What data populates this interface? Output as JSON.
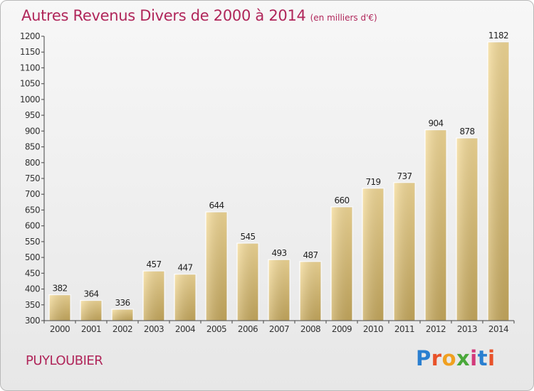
{
  "header": {
    "title": "Autres Revenus Divers de 2000 à 2014",
    "subtitle": "(en milliers d'€)"
  },
  "commune": "PUYLOUBIER",
  "logo": {
    "text": "Proxiti",
    "letter_colors": [
      "#2a7fd0",
      "#e8522a",
      "#f0a020",
      "#4aa83a",
      "#d23a7a",
      "#2a7fd0",
      "#e8522a"
    ]
  },
  "chart_data": {
    "type": "bar",
    "categories": [
      "2000",
      "2001",
      "2002",
      "2003",
      "2004",
      "2005",
      "2006",
      "2007",
      "2008",
      "2009",
      "2010",
      "2011",
      "2012",
      "2013",
      "2014"
    ],
    "values": [
      382,
      364,
      336,
      457,
      447,
      644,
      545,
      493,
      487,
      660,
      719,
      737,
      904,
      878,
      1182
    ],
    "ylim": [
      300,
      1200
    ],
    "yticks": [
      300,
      350,
      400,
      450,
      500,
      550,
      600,
      650,
      700,
      750,
      800,
      850,
      900,
      950,
      1000,
      1050,
      1100,
      1150,
      1200
    ],
    "grid": false,
    "bar_color": "#e0c278",
    "axis_color": "#444444"
  }
}
